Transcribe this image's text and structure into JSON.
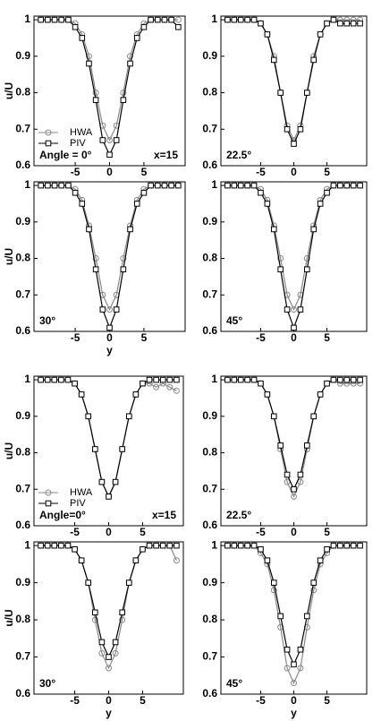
{
  "chart_data": [
    {
      "type": "line",
      "ylabel": "u/U",
      "x": [
        -10,
        -9,
        -8,
        -7,
        -6,
        -5,
        -4,
        -3,
        -2,
        -1,
        0,
        1,
        2,
        3,
        4,
        5,
        6,
        7,
        8,
        9,
        10
      ],
      "xlim": [
        -11,
        11
      ],
      "ylim": [
        0.6,
        1.01
      ],
      "xticks": [
        -5,
        0,
        5
      ],
      "yticks": [
        0.6,
        0.7,
        0.8,
        0.9,
        1
      ],
      "legend": true,
      "annotations": [
        "Angle = 0°",
        "x=15"
      ],
      "series": [
        {
          "name": "HWA",
          "color": "#888888",
          "marker": "circle",
          "values": [
            1,
            1,
            1,
            1,
            1,
            0.99,
            0.96,
            0.9,
            0.8,
            0.71,
            0.67,
            0.71,
            0.8,
            0.9,
            0.96,
            0.99,
            1,
            1,
            1,
            1,
            1
          ]
        },
        {
          "name": "PIV",
          "color": "#000000",
          "marker": "square",
          "values": [
            1,
            1,
            1,
            1,
            1,
            0.98,
            0.95,
            0.88,
            0.78,
            0.67,
            0.63,
            0.67,
            0.78,
            0.88,
            0.95,
            0.98,
            1,
            1,
            1,
            1,
            0.98
          ]
        }
      ]
    },
    {
      "type": "line",
      "x": [
        -10,
        -9,
        -8,
        -7,
        -6,
        -5,
        -4,
        -3,
        -2,
        -1,
        0,
        1,
        2,
        3,
        4,
        5,
        6,
        7,
        8,
        9,
        10
      ],
      "xlim": [
        -11,
        11
      ],
      "ylim": [
        0.6,
        1.01
      ],
      "xticks": [
        -5,
        0,
        5
      ],
      "yticks": [
        0.6,
        0.7,
        0.8,
        0.9,
        1
      ],
      "annotations": [
        "22.5°"
      ],
      "series": [
        {
          "color": "#888888",
          "marker": "circle",
          "values": [
            1,
            1,
            1,
            1,
            1,
            0.99,
            0.96,
            0.9,
            0.8,
            0.71,
            0.67,
            0.71,
            0.8,
            0.9,
            0.96,
            0.99,
            1,
            1,
            1,
            1,
            1
          ]
        },
        {
          "color": "#000000",
          "marker": "square",
          "values": [
            1,
            1,
            1,
            1,
            1,
            0.99,
            0.96,
            0.89,
            0.8,
            0.7,
            0.66,
            0.7,
            0.8,
            0.89,
            0.96,
            0.99,
            1,
            0.99,
            0.99,
            0.99,
            0.99
          ]
        }
      ]
    },
    {
      "type": "line",
      "ylabel": "u/U",
      "xlabel": "y",
      "x": [
        -10,
        -9,
        -8,
        -7,
        -6,
        -5,
        -4,
        -3,
        -2,
        -1,
        0,
        1,
        2,
        3,
        4,
        5,
        6,
        7,
        8,
        9,
        10
      ],
      "xlim": [
        -11,
        11
      ],
      "ylim": [
        0.6,
        1.01
      ],
      "xticks": [
        -5,
        0,
        5
      ],
      "yticks": [
        0.6,
        0.7,
        0.8,
        0.9,
        1
      ],
      "annotations": [
        "30°"
      ],
      "series": [
        {
          "color": "#888888",
          "marker": "circle",
          "values": [
            1,
            1,
            1,
            1,
            1,
            0.99,
            0.96,
            0.89,
            0.8,
            0.7,
            0.66,
            0.7,
            0.8,
            0.89,
            0.96,
            0.99,
            1,
            1,
            1,
            1,
            1
          ]
        },
        {
          "color": "#000000",
          "marker": "square",
          "values": [
            1,
            1,
            1,
            1,
            1,
            0.98,
            0.95,
            0.88,
            0.77,
            0.66,
            0.61,
            0.66,
            0.77,
            0.88,
            0.95,
            0.98,
            1,
            1,
            1,
            1,
            1
          ]
        }
      ]
    },
    {
      "type": "line",
      "x": [
        -10,
        -9,
        -8,
        -7,
        -6,
        -5,
        -4,
        -3,
        -2,
        -1,
        0,
        1,
        2,
        3,
        4,
        5,
        6,
        7,
        8,
        9,
        10
      ],
      "xlim": [
        -11,
        11
      ],
      "ylim": [
        0.6,
        1.01
      ],
      "xticks": [
        -5,
        0,
        5
      ],
      "yticks": [
        0.6,
        0.7,
        0.8,
        0.9,
        1
      ],
      "annotations": [
        "45°"
      ],
      "series": [
        {
          "color": "#888888",
          "marker": "circle",
          "values": [
            1,
            1,
            1,
            1,
            1,
            0.99,
            0.96,
            0.89,
            0.8,
            0.7,
            0.66,
            0.7,
            0.8,
            0.89,
            0.96,
            0.99,
            1,
            1,
            1,
            1,
            1
          ]
        },
        {
          "color": "#000000",
          "marker": "square",
          "values": [
            1,
            1,
            1,
            1,
            1,
            0.98,
            0.95,
            0.88,
            0.77,
            0.66,
            0.61,
            0.66,
            0.77,
            0.88,
            0.95,
            0.98,
            1,
            1,
            1,
            1,
            1
          ]
        }
      ]
    },
    {
      "type": "line",
      "ylabel": "u/U",
      "x": [
        -10,
        -9,
        -8,
        -7,
        -6,
        -5,
        -4,
        -3,
        -2,
        -1,
        0,
        1,
        2,
        3,
        4,
        5,
        6,
        7,
        8,
        9,
        10
      ],
      "xlim": [
        -11,
        11
      ],
      "ylim": [
        0.6,
        1.01
      ],
      "xticks": [
        -5,
        0,
        5
      ],
      "yticks": [
        0.6,
        0.7,
        0.8,
        0.9,
        1
      ],
      "legend": true,
      "annotations": [
        "Angle=0°",
        "x=15"
      ],
      "series": [
        {
          "name": "HWA",
          "color": "#888888",
          "marker": "circle",
          "values": [
            1,
            1,
            1,
            1,
            1,
            0.99,
            0.96,
            0.9,
            0.81,
            0.72,
            0.68,
            0.72,
            0.81,
            0.9,
            0.96,
            0.99,
            0.99,
            0.98,
            0.99,
            0.98,
            0.97
          ]
        },
        {
          "name": "PIV",
          "color": "#000000",
          "marker": "square",
          "values": [
            1,
            1,
            1,
            1,
            1,
            0.99,
            0.96,
            0.9,
            0.81,
            0.72,
            0.68,
            0.72,
            0.81,
            0.9,
            0.96,
            0.99,
            1,
            1,
            1,
            1,
            1
          ]
        }
      ]
    },
    {
      "type": "line",
      "x": [
        -10,
        -9,
        -8,
        -7,
        -6,
        -5,
        -4,
        -3,
        -2,
        -1,
        0,
        1,
        2,
        3,
        4,
        5,
        6,
        7,
        8,
        9,
        10
      ],
      "xlim": [
        -11,
        11
      ],
      "ylim": [
        0.6,
        1.01
      ],
      "xticks": [
        -5,
        0,
        5
      ],
      "yticks": [
        0.6,
        0.7,
        0.8,
        0.9,
        1
      ],
      "annotations": [
        "22.5°"
      ],
      "series": [
        {
          "color": "#888888",
          "marker": "circle",
          "values": [
            1,
            1,
            1,
            1,
            1,
            0.99,
            0.96,
            0.9,
            0.81,
            0.72,
            0.68,
            0.72,
            0.81,
            0.9,
            0.96,
            0.99,
            1,
            0.99,
            0.99,
            0.99,
            0.99
          ]
        },
        {
          "color": "#000000",
          "marker": "square",
          "values": [
            1,
            1,
            1,
            1,
            1,
            0.99,
            0.96,
            0.9,
            0.82,
            0.74,
            0.7,
            0.74,
            0.82,
            0.9,
            0.96,
            0.99,
            1,
            1,
            1,
            1,
            1
          ]
        }
      ]
    },
    {
      "type": "line",
      "ylabel": "u/U",
      "xlabel": "y",
      "x": [
        -10,
        -9,
        -8,
        -7,
        -6,
        -5,
        -4,
        -3,
        -2,
        -1,
        0,
        1,
        2,
        3,
        4,
        5,
        6,
        7,
        8,
        9,
        10
      ],
      "xlim": [
        -11,
        11
      ],
      "ylim": [
        0.6,
        1.01
      ],
      "xticks": [
        -5,
        0,
        5
      ],
      "yticks": [
        0.6,
        0.7,
        0.8,
        0.9,
        1
      ],
      "annotations": [
        "30°"
      ],
      "series": [
        {
          "color": "#888888",
          "marker": "circle",
          "values": [
            1,
            1,
            1,
            1,
            1,
            0.99,
            0.96,
            0.9,
            0.8,
            0.71,
            0.67,
            0.71,
            0.8,
            0.9,
            0.96,
            0.99,
            1,
            1,
            1,
            1,
            0.96
          ]
        },
        {
          "color": "#000000",
          "marker": "square",
          "values": [
            1,
            1,
            1,
            1,
            1,
            0.99,
            0.96,
            0.9,
            0.82,
            0.74,
            0.7,
            0.74,
            0.82,
            0.9,
            0.96,
            0.99,
            1,
            1,
            1,
            1,
            1
          ]
        }
      ]
    },
    {
      "type": "line",
      "xlabel": "y",
      "x": [
        -10,
        -9,
        -8,
        -7,
        -6,
        -5,
        -4,
        -3,
        -2,
        -1,
        0,
        1,
        2,
        3,
        4,
        5,
        6,
        7,
        8,
        9,
        10
      ],
      "xlim": [
        -11,
        11
      ],
      "ylim": [
        0.6,
        1.01
      ],
      "xticks": [
        -5,
        0,
        5
      ],
      "yticks": [
        0.6,
        0.7,
        0.8,
        0.9,
        1
      ],
      "annotations": [
        "45°"
      ],
      "series": [
        {
          "color": "#888888",
          "marker": "circle",
          "values": [
            1,
            1,
            1,
            1,
            1,
            0.98,
            0.95,
            0.88,
            0.78,
            0.67,
            0.63,
            0.67,
            0.78,
            0.88,
            0.95,
            0.98,
            1,
            1,
            1,
            1,
            1
          ]
        },
        {
          "color": "#000000",
          "marker": "square",
          "values": [
            1,
            1,
            1,
            1,
            1,
            0.99,
            0.96,
            0.9,
            0.81,
            0.72,
            0.68,
            0.72,
            0.81,
            0.9,
            0.96,
            0.99,
            1,
            1,
            1,
            1,
            1
          ]
        }
      ]
    }
  ]
}
